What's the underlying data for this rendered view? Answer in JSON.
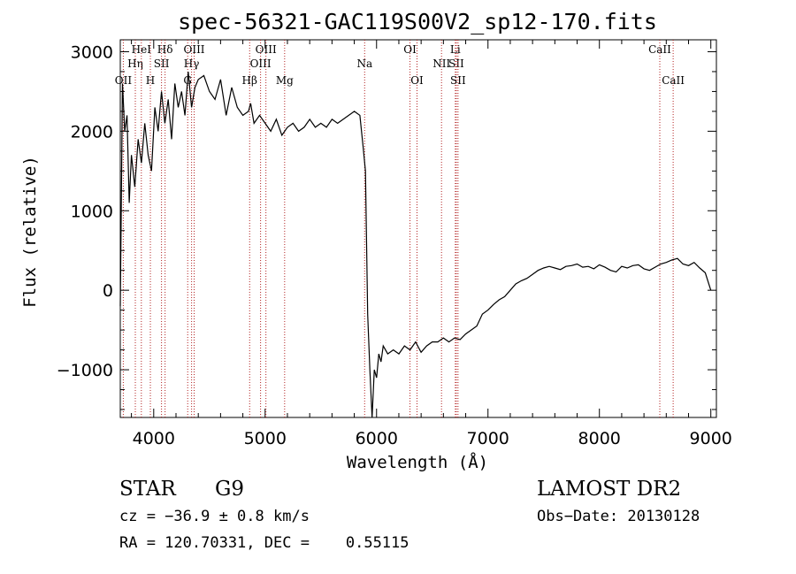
{
  "chart_data": {
    "type": "line",
    "title": "spec-56321-GAC119S00V2_sp12-170.fits",
    "xlabel": "Wavelength (Å)",
    "ylabel": "Flux (relative)",
    "xlim": [
      3700,
      9050
    ],
    "ylim": [
      -1600,
      3150
    ],
    "x_ticks": [
      4000,
      5000,
      6000,
      7000,
      8000,
      9000
    ],
    "y_ticks": [
      -1000,
      0,
      1000,
      2000,
      3000
    ],
    "grid": false,
    "series": [
      {
        "color": "#000000",
        "x": [
          3700,
          3720,
          3740,
          3760,
          3780,
          3800,
          3830,
          3860,
          3890,
          3920,
          3950,
          3980,
          4010,
          4040,
          4070,
          4100,
          4130,
          4160,
          4190,
          4220,
          4250,
          4280,
          4310,
          4340,
          4370,
          4400,
          4450,
          4500,
          4550,
          4600,
          4650,
          4700,
          4750,
          4800,
          4850,
          4870,
          4900,
          4950,
          5000,
          5050,
          5100,
          5150,
          5200,
          5250,
          5300,
          5350,
          5400,
          5450,
          5500,
          5550,
          5600,
          5650,
          5700,
          5750,
          5800,
          5850,
          5880,
          5900,
          5920,
          5940,
          5960,
          5980,
          6000,
          6020,
          6040,
          6060,
          6100,
          6150,
          6200,
          6250,
          6300,
          6350,
          6400,
          6450,
          6500,
          6550,
          6600,
          6650,
          6700,
          6750,
          6800,
          6850,
          6900,
          6950,
          7000,
          7050,
          7100,
          7150,
          7200,
          7250,
          7300,
          7350,
          7400,
          7450,
          7500,
          7550,
          7600,
          7650,
          7700,
          7750,
          7800,
          7850,
          7900,
          7950,
          8000,
          8050,
          8100,
          8150,
          8200,
          8250,
          8300,
          8350,
          8400,
          8450,
          8500,
          8550,
          8600,
          8650,
          8700,
          8750,
          8800,
          8850,
          8900,
          8950,
          9000
        ],
        "values": [
          -200,
          2600,
          2000,
          2200,
          1100,
          1700,
          1300,
          1900,
          1600,
          2100,
          1700,
          1500,
          2300,
          2000,
          2500,
          2100,
          2400,
          1900,
          2600,
          2300,
          2500,
          2200,
          2750,
          2300,
          2550,
          2650,
          2700,
          2500,
          2400,
          2650,
          2200,
          2550,
          2300,
          2200,
          2250,
          2350,
          2100,
          2200,
          2100,
          2000,
          2150,
          1950,
          2050,
          2100,
          2000,
          2050,
          2150,
          2050,
          2100,
          2050,
          2150,
          2100,
          2150,
          2200,
          2250,
          2200,
          1800,
          1500,
          -300,
          -1000,
          -1600,
          -1000,
          -1100,
          -800,
          -900,
          -700,
          -800,
          -750,
          -800,
          -700,
          -750,
          -650,
          -780,
          -700,
          -650,
          -650,
          -600,
          -650,
          -600,
          -620,
          -550,
          -500,
          -450,
          -300,
          -250,
          -180,
          -120,
          -80,
          0,
          80,
          120,
          150,
          200,
          250,
          280,
          300,
          280,
          260,
          300,
          310,
          330,
          290,
          300,
          270,
          320,
          290,
          250,
          230,
          300,
          280,
          310,
          320,
          270,
          250,
          290,
          330,
          350,
          380,
          400,
          330,
          310,
          350,
          280,
          220,
          0
        ]
      }
    ],
    "lines": [
      {
        "name": "OII",
        "x": 3727,
        "row": 2
      },
      {
        "name": "Hη",
        "x": 3835,
        "row": 1
      },
      {
        "name": "HeI",
        "x": 3889,
        "row": 0
      },
      {
        "name": "H",
        "x": 3970,
        "row": 2
      },
      {
        "name": "SII",
        "x": 4070,
        "row": 1
      },
      {
        "name": "Hδ",
        "x": 4102,
        "row": 0
      },
      {
        "name": "G",
        "x": 4305,
        "row": 2
      },
      {
        "name": "Hγ",
        "x": 4340,
        "row": 1
      },
      {
        "name": "OIII",
        "x": 4363,
        "row": 0
      },
      {
        "name": "Hβ",
        "x": 4861,
        "row": 2
      },
      {
        "name": "OIII",
        "x": 4959,
        "row": 1
      },
      {
        "name": "OIII",
        "x": 5007,
        "row": 0
      },
      {
        "name": "Mg",
        "x": 5175,
        "row": 2
      },
      {
        "name": "Na",
        "x": 5893,
        "row": 1
      },
      {
        "name": "OI",
        "x": 6300,
        "row": 0
      },
      {
        "name": "OI",
        "x": 6363,
        "row": 2
      },
      {
        "name": "NII",
        "x": 6583,
        "row": 1
      },
      {
        "name": "Li",
        "x": 6707,
        "row": 0
      },
      {
        "name": "SII",
        "x": 6716,
        "row": 1
      },
      {
        "name": "SII",
        "x": 6731,
        "row": 2
      },
      {
        "name": "CaII",
        "x": 8542,
        "row": 0
      },
      {
        "name": "CaII",
        "x": 8662,
        "row": 2
      }
    ]
  },
  "info": {
    "class": "STAR",
    "subclass": "G9",
    "survey": "LAMOST DR2",
    "cz": "cz = −36.9 ± 0.8 km/s",
    "obs_date": "Obs−Date: 20130128",
    "coords": "RA = 120.70331, DEC =    0.55115"
  },
  "colors": {
    "spectrum": "#000000",
    "line_markers": "#b22222",
    "axes": "#000000"
  }
}
